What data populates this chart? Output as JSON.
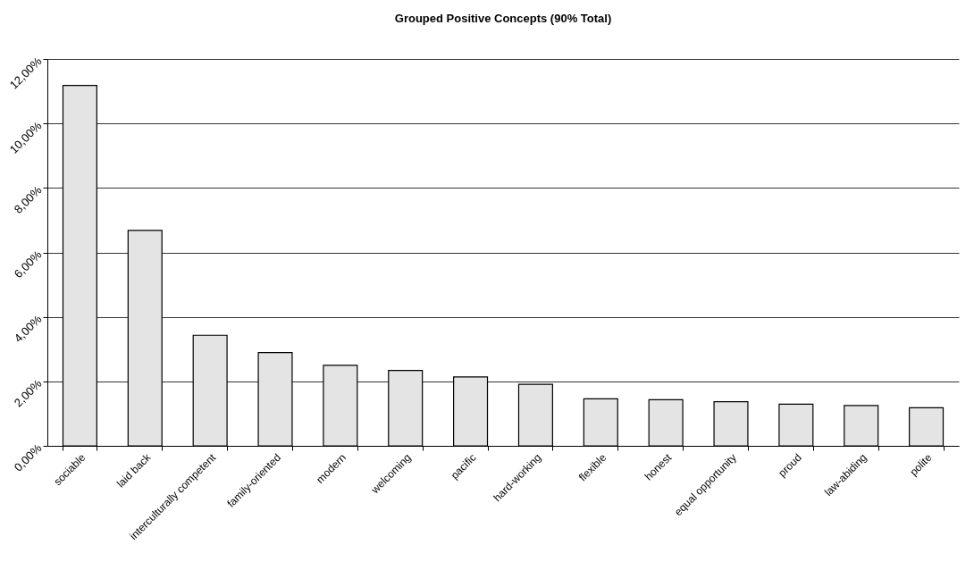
{
  "chart_data": {
    "type": "bar",
    "title": "Grouped Positive Concepts (90% Total)",
    "categories": [
      "sociable",
      "laid back",
      "interculturally competent",
      "family-oriented",
      "modern",
      "welcoming",
      "pacific",
      "hard-working",
      "flexible",
      "honest",
      "equal opportunity",
      "proud",
      "law-abiding",
      "polite"
    ],
    "values": [
      11.18,
      6.68,
      3.43,
      2.89,
      2.5,
      2.34,
      2.14,
      1.91,
      1.46,
      1.43,
      1.37,
      1.29,
      1.25,
      1.18
    ],
    "color": "#e4e4e4",
    "ylim": [
      0,
      12
    ],
    "yticks": [
      {
        "value": 0,
        "label": "0,00%"
      },
      {
        "value": 2,
        "label": "2,00%"
      },
      {
        "value": 4,
        "label": "4,00%"
      },
      {
        "value": 6,
        "label": "6,00%"
      },
      {
        "value": 8,
        "label": "8,00%"
      },
      {
        "value": 10,
        "label": "10,00%"
      },
      {
        "value": 12,
        "label": "12,00%"
      }
    ],
    "grid": "y"
  }
}
